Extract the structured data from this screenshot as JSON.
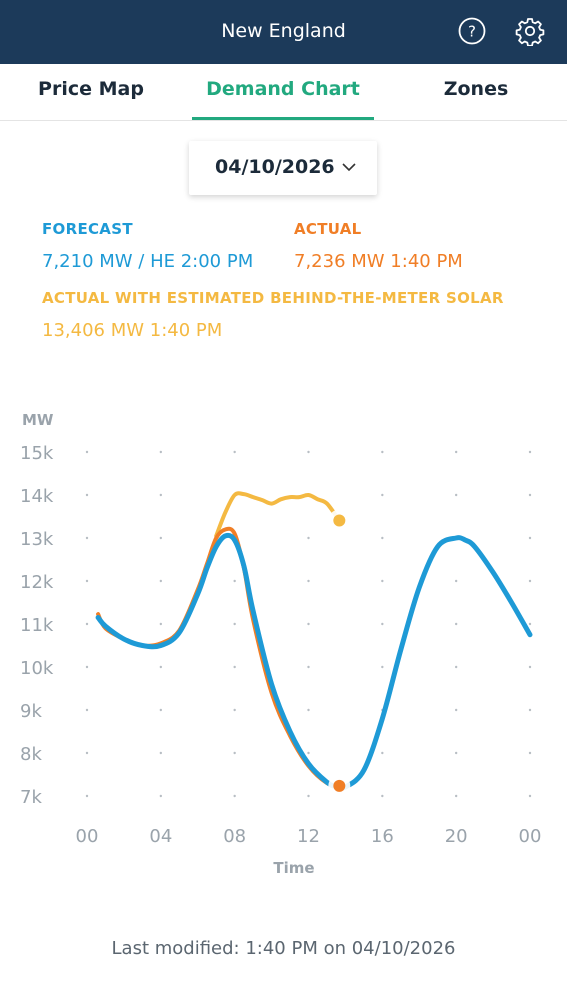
{
  "header": {
    "title": "New England",
    "help_icon": "help-circle-icon",
    "settings_icon": "gear-icon",
    "bg_color": "#1c3a5a"
  },
  "tabs": [
    {
      "label": "Price Map",
      "active": false
    },
    {
      "label": "Demand Chart",
      "active": true
    },
    {
      "label": "Zones",
      "active": false
    }
  ],
  "date_picker": {
    "value": "04/10/2026"
  },
  "legend": {
    "forecast": {
      "label": "FORECAST",
      "value": "7,210 MW / HE 2:00 PM",
      "color": "#1e9ad6"
    },
    "actual": {
      "label": "ACTUAL",
      "value": "7,236 MW 1:40 PM",
      "color": "#f07e26"
    },
    "btm": {
      "label": "ACTUAL WITH ESTIMATED BEHIND-THE-METER SOLAR",
      "value": "13,406 MW 1:40 PM",
      "color": "#f4b942"
    }
  },
  "footer": {
    "last_modified": "Last modified:  1:40 PM on 04/10/2026"
  },
  "chart_data": {
    "type": "line",
    "ylabel": "MW",
    "xlabel": "Time",
    "ylim": [
      7000,
      15000
    ],
    "xlim": [
      0,
      24
    ],
    "y_ticks": [
      "15k",
      "14k",
      "13k",
      "12k",
      "11k",
      "10k",
      "9k",
      "8k",
      "7k"
    ],
    "y_tick_values": [
      15000,
      14000,
      13000,
      12000,
      11000,
      10000,
      9000,
      8000,
      7000
    ],
    "x_ticks": [
      "00",
      "04",
      "08",
      "12",
      "16",
      "20",
      "00"
    ],
    "x_tick_values": [
      0,
      4,
      8,
      12,
      16,
      20,
      24
    ],
    "grid": "dotted",
    "series": [
      {
        "key": "forecast",
        "color": "#1e9ad6",
        "x": [
          0.6,
          1,
          2,
          3,
          4,
          5,
          6,
          6.5,
          7,
          7.5,
          8,
          8.5,
          9,
          10,
          11,
          12,
          13,
          13.5,
          14,
          15,
          16,
          17,
          18,
          19,
          20,
          20.5,
          21,
          22,
          23,
          24
        ],
        "y": [
          11150,
          10950,
          10650,
          10500,
          10500,
          10800,
          11700,
          12300,
          12800,
          13050,
          12950,
          12350,
          11300,
          9600,
          8500,
          7750,
          7320,
          7220,
          7210,
          7600,
          8800,
          10400,
          11850,
          12800,
          13000,
          12950,
          12800,
          12200,
          11500,
          10750
        ]
      },
      {
        "key": "actual",
        "color": "#f07e26",
        "x": [
          0.6,
          1,
          2,
          3,
          4,
          5,
          6,
          6.5,
          7,
          7.5,
          8,
          8.5,
          9,
          10,
          11,
          12,
          13,
          13.67
        ],
        "y": [
          11230,
          10900,
          10650,
          10500,
          10550,
          10850,
          11800,
          12400,
          13000,
          13200,
          13100,
          12300,
          11100,
          9400,
          8400,
          7700,
          7300,
          7236
        ]
      },
      {
        "key": "btm",
        "color": "#f4b942",
        "x": [
          7,
          7.5,
          8,
          8.5,
          9,
          9.5,
          10,
          10.5,
          11,
          11.5,
          12,
          12.5,
          13,
          13.67
        ],
        "y": [
          13050,
          13600,
          14000,
          14020,
          13950,
          13880,
          13800,
          13900,
          13950,
          13950,
          14000,
          13900,
          13800,
          13406
        ]
      }
    ],
    "markers": [
      {
        "series": "btm",
        "x": 13.67,
        "y": 13406,
        "color": "#f4b942"
      },
      {
        "series": "actual",
        "x": 13.67,
        "y": 7236,
        "color": "#f07e26"
      }
    ]
  }
}
